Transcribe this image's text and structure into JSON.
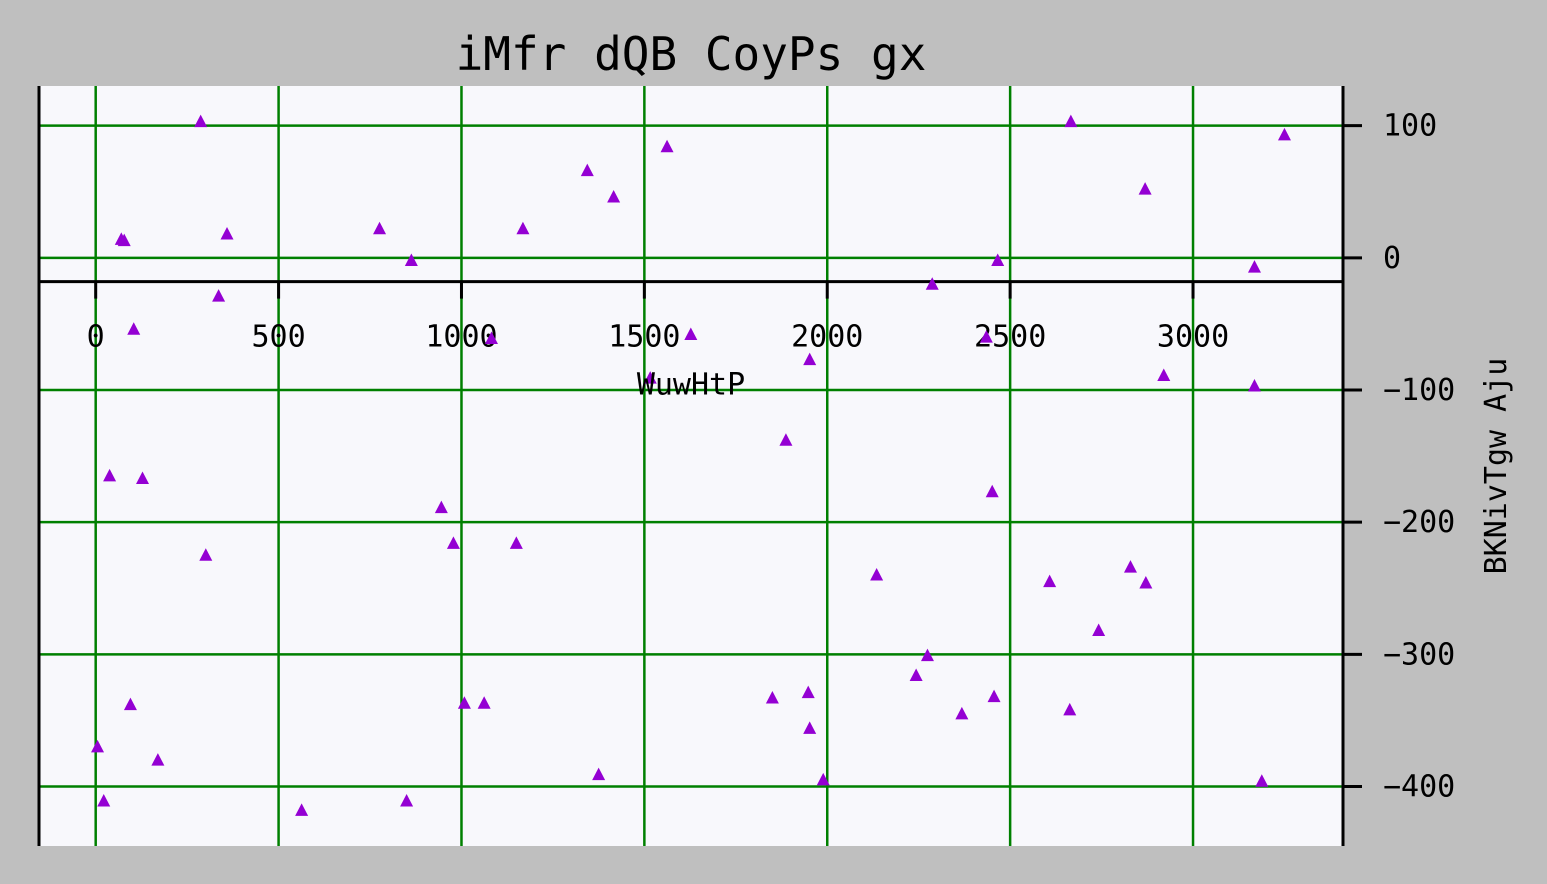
{
  "chart_data": {
    "type": "scatter",
    "title": "iMfr dQB CoyPs gx",
    "xlabel": "WuwHtP",
    "ylabel": "BKNivTgw Aju",
    "xlim": [
      -155,
      3410
    ],
    "ylim": [
      -445,
      130
    ],
    "xticks": [
      0,
      500,
      1000,
      1500,
      2000,
      2500,
      3000
    ],
    "yticks": [
      100,
      0,
      -100,
      -200,
      -300,
      -400
    ],
    "x_tick_labels": [
      "0",
      "500",
      "1000",
      "1500",
      "2000",
      "2500",
      "3000"
    ],
    "y_tick_labels": [
      "100",
      "0",
      "−100",
      "−200",
      "−300",
      "−400"
    ],
    "x_axis_position": "y = -18",
    "y_axis_position": "right",
    "grid": true,
    "colors": {
      "background": "#bfbfbf",
      "plot_background": "#f8f8fc",
      "grid": "#008000",
      "marker": "#9400d3",
      "axis": "#000000"
    },
    "marker": "triangle-up",
    "points": [
      {
        "x": 70,
        "y": 14
      },
      {
        "x": 78,
        "y": 13
      },
      {
        "x": 104,
        "y": -54
      },
      {
        "x": 287,
        "y": 103
      },
      {
        "x": 359,
        "y": 18
      },
      {
        "x": 336,
        "y": -29
      },
      {
        "x": 776,
        "y": 22
      },
      {
        "x": 863,
        "y": -2
      },
      {
        "x": 1168,
        "y": 22
      },
      {
        "x": 1344,
        "y": 66
      },
      {
        "x": 1416,
        "y": 46
      },
      {
        "x": 1562,
        "y": 84
      },
      {
        "x": 1082,
        "y": -61
      },
      {
        "x": 1627,
        "y": -58
      },
      {
        "x": 1516,
        "y": -91
      },
      {
        "x": 1952,
        "y": -77
      },
      {
        "x": 2287,
        "y": -20
      },
      {
        "x": 2435,
        "y": -60
      },
      {
        "x": 2466,
        "y": -2
      },
      {
        "x": 2666,
        "y": 103
      },
      {
        "x": 2869,
        "y": 52
      },
      {
        "x": 3168,
        "y": -7
      },
      {
        "x": 3250,
        "y": 93
      },
      {
        "x": 2920,
        "y": -89
      },
      {
        "x": 3168,
        "y": -97
      },
      {
        "x": 38,
        "y": -165
      },
      {
        "x": 128,
        "y": -167
      },
      {
        "x": 301,
        "y": -225
      },
      {
        "x": 945,
        "y": -189
      },
      {
        "x": 978,
        "y": -216
      },
      {
        "x": 1150,
        "y": -216
      },
      {
        "x": 1887,
        "y": -138
      },
      {
        "x": 2451,
        "y": -177
      },
      {
        "x": 2135,
        "y": -240
      },
      {
        "x": 2608,
        "y": -245
      },
      {
        "x": 2829,
        "y": -234
      },
      {
        "x": 2871,
        "y": -246
      },
      {
        "x": 2742,
        "y": -282
      },
      {
        "x": 2274,
        "y": -301
      },
      {
        "x": 2243,
        "y": -316
      },
      {
        "x": 2368,
        "y": -345
      },
      {
        "x": 2456,
        "y": -332
      },
      {
        "x": 2663,
        "y": -342
      },
      {
        "x": 1850,
        "y": -333
      },
      {
        "x": 1948,
        "y": -329
      },
      {
        "x": 1952,
        "y": -356
      },
      {
        "x": 1989,
        "y": -395
      },
      {
        "x": 1375,
        "y": -391
      },
      {
        "x": 1008,
        "y": -337
      },
      {
        "x": 1062,
        "y": -337
      },
      {
        "x": 95,
        "y": -338
      },
      {
        "x": 5,
        "y": -370
      },
      {
        "x": 170,
        "y": -380
      },
      {
        "x": 22,
        "y": -411
      },
      {
        "x": 563,
        "y": -418
      },
      {
        "x": 850,
        "y": -411
      },
      {
        "x": 3188,
        "y": -396
      }
    ]
  }
}
